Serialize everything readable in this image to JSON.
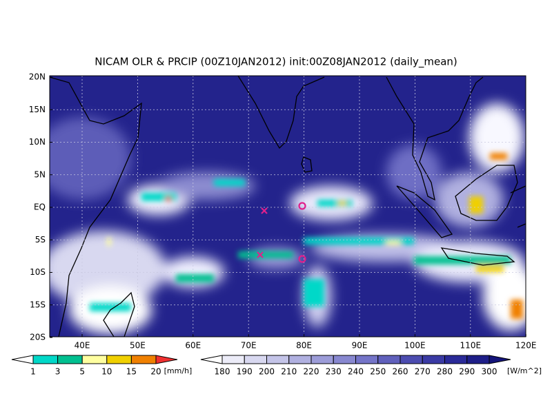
{
  "title": "NICAM OLR & PRCIP (00Z10JAN2012) init:00Z08JAN2012 (daily_mean)",
  "lat_labels": [
    "20N",
    "15N",
    "10N",
    "5N",
    "EQ",
    "5S",
    "10S",
    "15S",
    "20S"
  ],
  "lon_labels": [
    "40E",
    "50E",
    "60E",
    "70E",
    "80E",
    "90E",
    "100E",
    "110E",
    "120E"
  ],
  "precip_colorbar": {
    "labels": [
      1,
      3,
      5,
      10,
      15,
      20
    ],
    "unit": "[mm/h]"
  },
  "olr_colorbar": {
    "labels": [
      180,
      190,
      200,
      210,
      220,
      230,
      240,
      250,
      260,
      270,
      280,
      290,
      300
    ],
    "unit": "[W/m^2]"
  }
}
